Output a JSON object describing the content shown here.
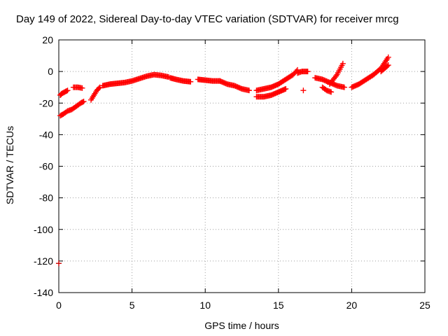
{
  "chart_data": {
    "type": "scatter",
    "title": "Day 149 of 2022, Sidereal Day-to-day VTEC variation (SDTVAR) for receiver mrcg",
    "xlabel": "GPS time / hours",
    "ylabel": "SDTVAR / TECUs",
    "xlim": [
      0,
      25
    ],
    "ylim": [
      -140,
      20
    ],
    "xticks": [
      0,
      5,
      10,
      15,
      20,
      25
    ],
    "yticks": [
      20,
      0,
      -20,
      -40,
      -60,
      -80,
      -100,
      -120,
      -140
    ],
    "grid": true,
    "marker": "+",
    "color": "#ff0000",
    "outlier_color": "#cc0000",
    "outliers": [
      [
        0.0,
        -121.5
      ]
    ],
    "segments": [
      {
        "x": [
          0.1,
          0.3,
          0.6,
          0.9,
          1.2,
          1.5,
          1.7
        ],
        "y": [
          -28,
          -27,
          -25,
          -24,
          -22,
          -20,
          -19
        ]
      },
      {
        "x": [
          0.1,
          0.2,
          0.4,
          0.6
        ],
        "y": [
          -15,
          -14,
          -13,
          -12
        ]
      },
      {
        "x": [
          1.0,
          1.3,
          1.6
        ],
        "y": [
          -10,
          -10,
          -10.5
        ]
      },
      {
        "x": [
          2.2,
          2.4,
          2.6,
          2.8
        ],
        "y": [
          -18,
          -15,
          -12,
          -10
        ]
      },
      {
        "x": [
          3.0,
          3.5,
          4.0,
          4.5,
          5.0,
          5.5,
          6.0,
          6.5,
          7.0,
          7.5
        ],
        "y": [
          -9,
          -8,
          -7.5,
          -7,
          -6,
          -4.5,
          -3,
          -2,
          -2.5,
          -3.5
        ]
      },
      {
        "x": [
          7.6,
          8.0,
          8.5,
          9.0
        ],
        "y": [
          -4,
          -5,
          -6,
          -6.5
        ]
      },
      {
        "x": [
          9.5,
          10.0,
          10.5,
          11.0
        ],
        "y": [
          -5,
          -5.5,
          -6,
          -6
        ]
      },
      {
        "x": [
          11.0,
          11.5,
          12.0,
          12.5,
          13.0
        ],
        "y": [
          -6,
          -8,
          -9,
          -11,
          -12
        ]
      },
      {
        "x": [
          13.5,
          14.0,
          14.5,
          15.0,
          15.5,
          16.0,
          16.3
        ],
        "y": [
          -12,
          -11,
          -10,
          -8,
          -5,
          -2,
          1
        ]
      },
      {
        "x": [
          13.5,
          14.0,
          14.5,
          15.0,
          15.5
        ],
        "y": [
          -16,
          -16,
          -15,
          -13,
          -11
        ]
      },
      {
        "x": [
          16.3,
          16.6,
          17.0
        ],
        "y": [
          -1,
          0,
          0
        ]
      },
      {
        "x": [
          16.7
        ],
        "y": [
          -12
        ]
      },
      {
        "x": [
          17.5,
          18.0,
          18.5,
          19.0,
          19.5
        ],
        "y": [
          -4,
          -5,
          -7,
          -9,
          -10
        ]
      },
      {
        "x": [
          18.0,
          18.3,
          18.6
        ],
        "y": [
          -10,
          -12,
          -13
        ]
      },
      {
        "x": [
          18.5,
          19.0,
          19.4
        ],
        "y": [
          -8,
          -2,
          5
        ]
      },
      {
        "x": [
          20.0,
          20.5,
          21.0,
          21.5,
          22.0,
          22.5
        ],
        "y": [
          -10,
          -8,
          -5,
          -2,
          2,
          9
        ]
      },
      {
        "x": [
          22.0,
          22.5
        ],
        "y": [
          0,
          4
        ]
      }
    ]
  }
}
